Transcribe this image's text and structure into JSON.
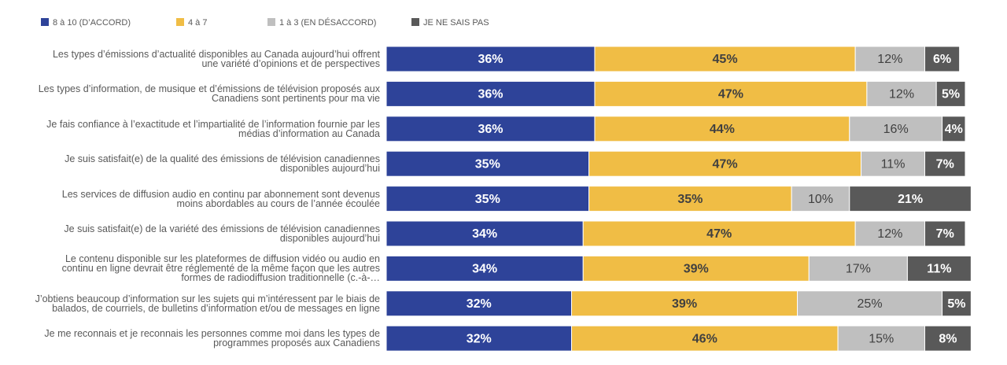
{
  "chart_data": {
    "type": "stacked-bar-horizontal",
    "categories": [
      "Les types d’émissions d’actualité disponibles au Canada aujourd’hui offrent une variété d’opinions et de perspectives",
      "Les types d’information, de musique et d’émissions de télévision proposés aux Canadiens sont pertinents pour ma vie",
      "Je fais confiance à l’exactitude et l’impartialité de l’information fournie par les médias d’information au Canada",
      "Je suis satisfait(e) de la qualité des émissions de télévision canadiennes disponibles aujourd’hui",
      "Les services de diffusion audio en continu par abonnement sont devenus moins abordables au cours de l’année écoulée",
      "Je suis satisfait(e) de la variété des émissions de télévision canadiennes disponibles aujourd’hui",
      "Le contenu disponible sur les plateformes de diffusion vidéo ou audio en continu en ligne devrait être réglementé de la même façon que les autres formes de radiodiffusion traditionnelle (c.-à-…",
      "J’obtiens beaucoup d’information sur les sujets qui m’intéressent par le biais de balados, de courriels, de bulletins d’information et/ou de messages en ligne",
      "Je me reconnais et je reconnais les personnes comme moi dans les types de programmes proposés aux Canadiens"
    ],
    "series": [
      {
        "name": "8 à 10 (D’ACCORD)",
        "color": "#2e4399",
        "values": [
          36,
          36,
          36,
          35,
          35,
          34,
          34,
          32,
          32
        ],
        "value_labels": [
          "36%",
          "36%",
          "36%",
          "35%",
          "35%",
          "34%",
          "34%",
          "32%",
          "32%"
        ]
      },
      {
        "name": "4 à 7",
        "color": "#f0bd45",
        "values": [
          45,
          47,
          44,
          47,
          35,
          47,
          39,
          39,
          46
        ],
        "value_labels": [
          "45%",
          "47%",
          "44%",
          "47%",
          "35%",
          "47%",
          "39%",
          "39%",
          "46%"
        ]
      },
      {
        "name": "1 à 3 (EN DÉSACCORD)",
        "color": "#bfbfbf",
        "values": [
          12,
          12,
          16,
          11,
          10,
          12,
          17,
          25,
          15
        ],
        "value_labels": [
          "12%",
          "12%",
          "16%",
          "11%",
          "10%",
          "12%",
          "17%",
          "25%",
          "15%"
        ]
      },
      {
        "name": "JE NE SAIS PAS",
        "color": "#595959",
        "values": [
          6,
          5,
          4,
          7,
          21,
          7,
          11,
          5,
          8
        ],
        "value_labels": [
          "6%",
          "5%",
          "4%",
          "7%",
          "21%",
          "7%",
          "11%",
          "5%",
          "8%"
        ]
      }
    ],
    "xlim": [
      0,
      100
    ],
    "legend": "top-left"
  }
}
